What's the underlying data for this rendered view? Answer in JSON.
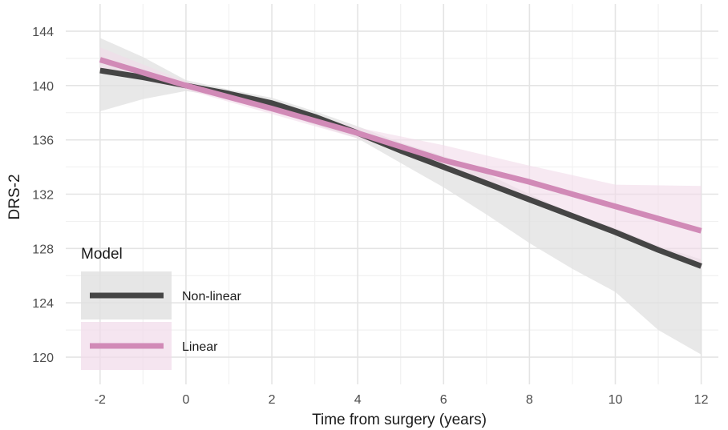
{
  "chart_data": {
    "type": "line",
    "title": "",
    "xlabel": "Time from surgery (years)",
    "ylabel": "DRS-2",
    "xlim": [
      -2.8,
      12.4
    ],
    "ylim": [
      118,
      146
    ],
    "x_ticks": [
      -2,
      0,
      2,
      4,
      6,
      8,
      10,
      12
    ],
    "x_tick_labels": [
      "-2",
      "0",
      "2",
      "4",
      "6",
      "8",
      "10",
      "12"
    ],
    "y_ticks": [
      120,
      124,
      128,
      132,
      136,
      140,
      144
    ],
    "y_tick_labels": [
      "120",
      "124",
      "128",
      "132",
      "136",
      "140",
      "144"
    ],
    "grid": true,
    "legend": {
      "title": "Model",
      "placement": "bottom-left"
    },
    "series": [
      {
        "name": "Non-linear",
        "color": "#454545",
        "ribbon_color": "#e0e0e0",
        "x": [
          -2,
          -1,
          0,
          1,
          2,
          3,
          4,
          5,
          6,
          7,
          8,
          9,
          10,
          11,
          12
        ],
        "y": [
          141.1,
          140.6,
          140.0,
          139.4,
          138.7,
          137.7,
          136.5,
          135.2,
          134.0,
          132.8,
          131.6,
          130.4,
          129.2,
          127.9,
          126.7
        ],
        "lower": [
          138.1,
          139.0,
          139.6,
          139.1,
          138.2,
          137.1,
          136.1,
          134.3,
          132.5,
          130.5,
          128.4,
          126.5,
          124.8,
          122.0,
          120.2
        ],
        "upper": [
          143.5,
          142.1,
          140.4,
          139.7,
          139.1,
          138.1,
          137.0,
          135.8,
          134.8,
          133.5,
          132.0,
          130.6,
          129.5,
          128.2,
          127.2
        ]
      },
      {
        "name": "Linear",
        "color": "#d18ab7",
        "ribbon_color": "#f1dae9",
        "x": [
          -2,
          0,
          2,
          4,
          6,
          8,
          10,
          12
        ],
        "y": [
          141.9,
          140.0,
          138.3,
          136.5,
          134.5,
          132.9,
          131.1,
          129.3
        ],
        "lower": [
          141.1,
          139.7,
          137.9,
          136.1,
          134.2,
          131.7,
          129.4,
          126.5
        ],
        "upper": [
          142.8,
          140.3,
          138.7,
          136.9,
          135.6,
          134.1,
          132.7,
          132.6
        ]
      }
    ]
  }
}
